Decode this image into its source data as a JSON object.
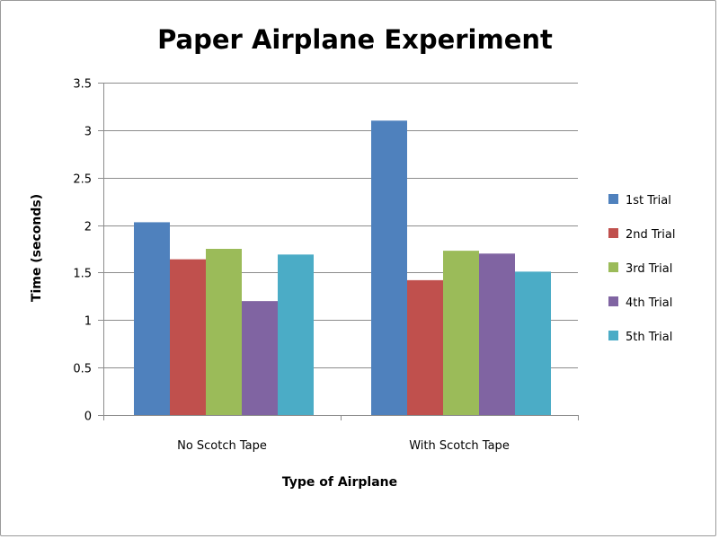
{
  "chart_data": {
    "type": "bar",
    "title": "Paper Airplane Experiment",
    "xlabel": "Type of Airplane",
    "ylabel": "Time (seconds)",
    "categories": [
      "No Scotch Tape",
      "With Scotch Tape"
    ],
    "ylim": [
      0,
      3.5
    ],
    "yticks": [
      "0",
      "0.5",
      "1",
      "1.5",
      "2",
      "2.5",
      "3",
      "3.5"
    ],
    "grid": true,
    "legend_position": "right",
    "series": [
      {
        "name": "1st Trial",
        "values": [
          2.03,
          3.1
        ],
        "color": "#4F81BD"
      },
      {
        "name": "2nd Trial",
        "values": [
          1.64,
          1.42
        ],
        "color": "#C0504D"
      },
      {
        "name": "3rd Trial",
        "values": [
          1.75,
          1.73
        ],
        "color": "#9BBB59"
      },
      {
        "name": "4th Trial",
        "values": [
          1.2,
          1.7
        ],
        "color": "#8064A2"
      },
      {
        "name": "5th Trial",
        "values": [
          1.69,
          1.51
        ],
        "color": "#4BACC6"
      }
    ]
  }
}
